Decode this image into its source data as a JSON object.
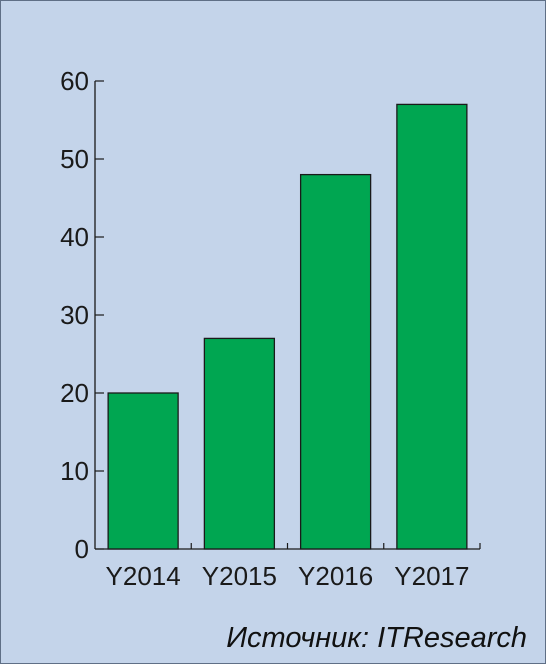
{
  "chart_data": {
    "type": "bar",
    "categories": [
      "Y2014",
      "Y2015",
      "Y2016",
      "Y2017"
    ],
    "values": [
      20,
      27,
      48,
      57
    ],
    "ylim": [
      0,
      60
    ],
    "yticks": [
      0,
      10,
      20,
      30,
      40,
      50,
      60
    ],
    "title": "",
    "xlabel": "",
    "ylabel": "",
    "bar_color": "#00a651",
    "bar_edge_color": "#1a1a1a",
    "background_color": "#c4d4ea",
    "grid": false,
    "legend": "none"
  },
  "source": {
    "text": "Источник: ITResearch"
  }
}
